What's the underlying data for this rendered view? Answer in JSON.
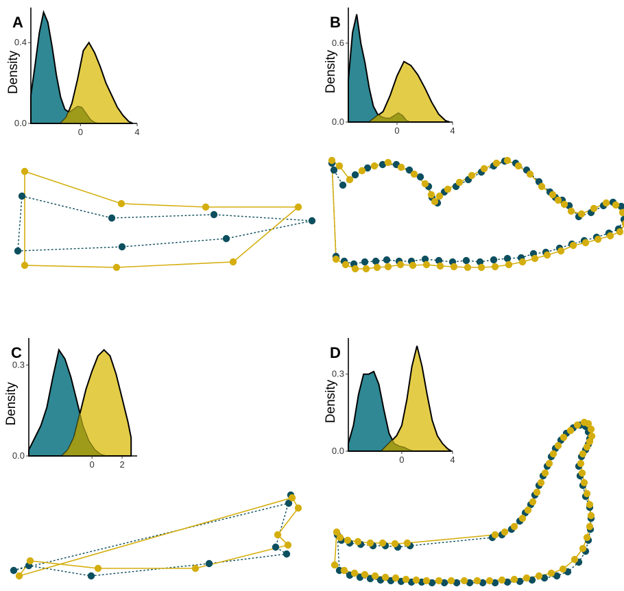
{
  "figure": {
    "colors": {
      "teal": "#0d4f5f",
      "teal_fill": "#2f8894",
      "yellow": "#d4ae0e",
      "yellow_fill": "#e2c93e"
    }
  },
  "chart_data": [
    {
      "panel": "A",
      "type": "area",
      "subtype": "density",
      "ylabel": "Density",
      "xlim": [
        -3.5,
        4
      ],
      "ylim": [
        0,
        0.56
      ],
      "xticks": [
        "0",
        "4"
      ],
      "xtick_values": [
        0,
        4
      ],
      "yticks": [
        "0.0",
        "0.4"
      ],
      "ytick_values": [
        0,
        0.4
      ],
      "series": [
        {
          "color": "teal",
          "x": [
            -3.5,
            -3.2,
            -2.9,
            -2.6,
            -2.3,
            -2.0,
            -1.7,
            -1.4,
            -1.1,
            -0.8,
            -0.5,
            -0.2,
            0.1,
            0.4,
            0.7,
            1.0,
            1.3
          ],
          "y": [
            0.14,
            0.29,
            0.45,
            0.55,
            0.5,
            0.38,
            0.24,
            0.13,
            0.07,
            0.055,
            0.07,
            0.085,
            0.08,
            0.05,
            0.02,
            0.005,
            0.0
          ]
        },
        {
          "color": "yellow",
          "x": [
            -1.4,
            -1.0,
            -0.6,
            -0.2,
            0.2,
            0.6,
            1.0,
            1.4,
            1.8,
            2.2,
            2.6,
            3.0,
            3.4,
            3.7
          ],
          "y": [
            0.0,
            0.03,
            0.1,
            0.22,
            0.36,
            0.4,
            0.35,
            0.28,
            0.2,
            0.14,
            0.08,
            0.04,
            0.01,
            0.0
          ]
        }
      ]
    },
    {
      "panel": "B",
      "type": "area",
      "subtype": "density",
      "ylabel": "Density",
      "xlim": [
        -3.5,
        4
      ],
      "ylim": [
        0,
        0.85
      ],
      "xticks": [
        "0",
        "4"
      ],
      "xtick_values": [
        0,
        4
      ],
      "yticks": [
        "0.0",
        "0.6"
      ],
      "ytick_values": [
        0,
        0.6
      ],
      "series": [
        {
          "color": "teal",
          "x": [
            -3.5,
            -3.2,
            -2.9,
            -2.6,
            -2.3,
            -2.0,
            -1.7,
            -1.4,
            -1.1,
            -0.8,
            -0.5,
            -0.2,
            0.1,
            0.4,
            0.7,
            1.0
          ],
          "y": [
            0.32,
            0.68,
            0.82,
            0.6,
            0.45,
            0.26,
            0.12,
            0.06,
            0.04,
            0.03,
            0.03,
            0.05,
            0.07,
            0.05,
            0.01,
            0.0
          ]
        },
        {
          "color": "yellow",
          "x": [
            -2.0,
            -1.5,
            -1.0,
            -0.5,
            0.0,
            0.5,
            1.0,
            1.5,
            2.0,
            2.5,
            3.0,
            3.5,
            3.8
          ],
          "y": [
            0.0,
            0.04,
            0.08,
            0.2,
            0.35,
            0.46,
            0.43,
            0.36,
            0.26,
            0.15,
            0.06,
            0.01,
            0.0
          ]
        }
      ]
    },
    {
      "panel": "C",
      "type": "area",
      "subtype": "density",
      "ylabel": "Density",
      "xlim": [
        -4.2,
        3.0
      ],
      "ylim": [
        0,
        0.38
      ],
      "xticks": [
        "0",
        "2"
      ],
      "xtick_values": [
        0,
        2
      ],
      "yticks": [
        "0.0",
        "0.3"
      ],
      "ytick_values": [
        0,
        0.3
      ],
      "series": [
        {
          "color": "teal",
          "x": [
            -4.2,
            -3.8,
            -3.4,
            -3.0,
            -2.6,
            -2.2,
            -1.8,
            -1.4,
            -1.0,
            -0.6,
            -0.2,
            0.2,
            0.6,
            1.0
          ],
          "y": [
            0.02,
            0.06,
            0.1,
            0.16,
            0.26,
            0.35,
            0.32,
            0.26,
            0.18,
            0.1,
            0.05,
            0.02,
            0.005,
            0.0
          ]
        },
        {
          "color": "yellow",
          "x": [
            -2.0,
            -1.6,
            -1.2,
            -0.8,
            -0.4,
            0.0,
            0.4,
            0.8,
            1.2,
            1.6,
            2.0,
            2.4,
            2.6
          ],
          "y": [
            0.0,
            0.02,
            0.06,
            0.14,
            0.22,
            0.28,
            0.33,
            0.35,
            0.33,
            0.27,
            0.19,
            0.11,
            0.06
          ]
        }
      ]
    },
    {
      "panel": "D",
      "type": "area",
      "subtype": "density",
      "ylabel": "Density",
      "xlim": [
        -4.2,
        4
      ],
      "ylim": [
        0,
        0.43
      ],
      "xticks": [
        "0",
        "4"
      ],
      "xtick_values": [
        0,
        4
      ],
      "yticks": [
        "0.0",
        "0.3"
      ],
      "ytick_values": [
        0,
        0.3
      ],
      "series": [
        {
          "color": "teal",
          "x": [
            -4.2,
            -3.8,
            -3.4,
            -3.0,
            -2.6,
            -2.2,
            -1.8,
            -1.4,
            -1.0,
            -0.6,
            -0.2,
            0.2,
            0.6,
            1.0
          ],
          "y": [
            0.03,
            0.1,
            0.22,
            0.3,
            0.3,
            0.31,
            0.26,
            0.16,
            0.07,
            0.03,
            0.02,
            0.015,
            0.005,
            0.0
          ]
        },
        {
          "color": "yellow",
          "x": [
            -1.6,
            -1.2,
            -0.8,
            -0.4,
            0.0,
            0.4,
            0.8,
            1.2,
            1.6,
            2.0,
            2.4,
            2.8,
            3.2,
            3.6,
            3.9
          ],
          "y": [
            0.0,
            0.02,
            0.04,
            0.06,
            0.1,
            0.2,
            0.33,
            0.41,
            0.33,
            0.22,
            0.12,
            0.06,
            0.03,
            0.01,
            0.0
          ]
        }
      ]
    },
    {
      "panel": "A",
      "type": "scatter",
      "subtype": "point-correspondence",
      "xlim": [
        0,
        470
      ],
      "ylim": [
        0,
        200
      ],
      "series": [
        {
          "color": "teal",
          "linestyle": "dotted",
          "closed": true,
          "x": [
            32,
            163,
            312,
            455,
            330,
            178,
            26
          ],
          "y": [
            86,
            118,
            113,
            122,
            148,
            160,
            166
          ]
        },
        {
          "color": "yellow",
          "linestyle": "solid",
          "closed": true,
          "x": [
            36,
            177,
            300,
            435,
            340,
            170,
            36
          ],
          "y": [
            50,
            97,
            102,
            102,
            182,
            190,
            187
          ]
        }
      ]
    },
    {
      "panel": "B",
      "type": "scatter",
      "subtype": "point-correspondence",
      "xlim": [
        0,
        440
      ],
      "ylim": [
        0,
        200
      ],
      "series": [
        {
          "color": "teal",
          "linestyle": "dotted",
          "closed": true,
          "x": [
            14,
            17,
            30,
            48,
            66,
            88,
            108,
            127,
            143,
            155,
            160,
            168,
            178,
            195,
            213,
            232,
            250,
            266,
            282,
            298,
            316,
            332,
            340,
            350,
            360,
            374,
            392,
            410,
            424,
            436,
            440,
            432,
            418,
            400,
            382,
            364,
            346,
            326,
            308,
            290,
            270,
            250,
            230,
            210,
            190,
            170,
            150,
            130,
            112,
            94,
            78,
            62,
            46,
            32,
            20
          ],
          "y": [
            38,
            48,
            70,
            55,
            45,
            40,
            40,
            48,
            58,
            72,
            88,
            96,
            80,
            72,
            62,
            51,
            42,
            35,
            38,
            48,
            65,
            80,
            88,
            92,
            100,
            116,
            110,
            100,
            95,
            101,
            120,
            134,
            140,
            146,
            151,
            156,
            162,
            168,
            170,
            176,
            177,
            179,
            182,
            180,
            182,
            180,
            178,
            181,
            181,
            179,
            181,
            182,
            185,
            181,
            174
          ]
        },
        {
          "color": "yellow",
          "linestyle": "solid",
          "closed": true,
          "x": [
            14,
            25,
            40,
            58,
            76,
            96,
            115,
            134,
            150,
            159,
            164,
            171,
            183,
            200,
            218,
            236,
            254,
            270,
            286,
            303,
            320,
            336,
            344,
            353,
            363,
            378,
            396,
            414,
            428,
            438,
            442,
            434,
            420,
            402,
            384,
            366,
            348,
            328,
            310,
            292,
            272,
            252,
            232,
            212,
            192,
            172,
            152,
            132,
            114,
            96,
            80,
            64,
            48,
            34,
            20
          ],
          "y": [
            34,
            42,
            62,
            49,
            42,
            37,
            44,
            54,
            68,
            84,
            94,
            86,
            76,
            66,
            56,
            46,
            38,
            34,
            42,
            54,
            72,
            84,
            92,
            98,
            108,
            112,
            104,
            96,
            99,
            110,
            126,
            138,
            144,
            149,
            154,
            158,
            166,
            172,
            177,
            182,
            186,
            189,
            190,
            190,
            189,
            188,
            186,
            187,
            186,
            189,
            190,
            192,
            192,
            186,
            178
          ]
        }
      ]
    },
    {
      "panel": "C",
      "type": "scatter",
      "subtype": "point-correspondence",
      "xlim": [
        0,
        450
      ],
      "ylim": [
        0,
        170
      ],
      "series": [
        {
          "color": "teal",
          "linestyle": "dotted",
          "closed": true,
          "x": [
            20,
            42,
            133,
            305,
            418,
            402,
            424,
            421
          ],
          "y": [
            162,
            155,
            170,
            152,
            138,
            128,
            52,
            64
          ]
        },
        {
          "color": "yellow",
          "linestyle": "solid",
          "closed": true,
          "x": [
            28,
            44,
            143,
            285,
            420,
            405,
            435,
            426
          ],
          "y": [
            170,
            148,
            159,
            159,
            125,
            110,
            71,
            56
          ]
        }
      ]
    },
    {
      "panel": "D",
      "type": "scatter",
      "subtype": "point-correspondence",
      "xlim": [
        0,
        440
      ],
      "ylim": [
        0,
        260
      ],
      "series": [
        {
          "color": "teal",
          "linestyle": "dotted",
          "closed": true,
          "x": [
            25,
            40,
            55,
            70,
            85,
            100,
            115,
            130,
            145,
            160,
            178,
            196,
            215,
            234,
            252,
            270,
            288,
            306,
            324,
            342,
            358,
            374,
            384,
            388,
            391,
            392,
            390,
            384,
            380,
            376,
            374,
            378,
            384,
            388,
            390,
            388,
            384,
            376,
            366,
            356,
            348,
            340,
            334,
            328,
            322,
            316,
            310,
            304,
            296,
            288,
            276,
            262,
            248,
            128,
            110,
            92,
            74,
            56,
            40,
            28,
            22
          ],
          "y": [
            232,
            239,
            242,
            244,
            246,
            247,
            248,
            249,
            249,
            250,
            250,
            250,
            250,
            250,
            250,
            249,
            248,
            246,
            243,
            240,
            234,
            220,
            204,
            188,
            172,
            156,
            140,
            124,
            108,
            94,
            80,
            66,
            56,
            48,
            40,
            30,
            22,
            20,
            24,
            32,
            42,
            54,
            66,
            80,
            94,
            108,
            122,
            136,
            148,
            160,
            172,
            180,
            184,
            196,
            198,
            196,
            196,
            194,
            192,
            188,
            180
          ]
        },
        {
          "color": "yellow",
          "linestyle": "solid",
          "closed": true,
          "x": [
            18,
            32,
            47,
            62,
            77,
            92,
            107,
            122,
            137,
            152,
            170,
            188,
            207,
            226,
            244,
            262,
            280,
            298,
            316,
            334,
            351,
            368,
            380,
            386,
            390,
            392,
            390,
            386,
            382,
            379,
            377,
            380,
            386,
            390,
            393,
            392,
            388,
            382,
            372,
            362,
            352,
            344,
            337,
            331,
            325,
            319,
            313,
            307,
            300,
            292,
            280,
            266,
            252,
            124,
            106,
            88,
            70,
            52,
            37,
            26,
            21
          ],
          "y": [
            224,
            232,
            236,
            238,
            240,
            242,
            243,
            245,
            246,
            247,
            247,
            247,
            247,
            247,
            247,
            246,
            245,
            243,
            240,
            236,
            230,
            216,
            200,
            184,
            168,
            152,
            136,
            120,
            104,
            90,
            76,
            62,
            52,
            44,
            36,
            26,
            18,
            16,
            20,
            28,
            38,
            50,
            62,
            76,
            90,
            104,
            118,
            132,
            144,
            156,
            168,
            176,
            180,
            192,
            193,
            192,
            192,
            190,
            188,
            184,
            176
          ]
        }
      ]
    }
  ]
}
